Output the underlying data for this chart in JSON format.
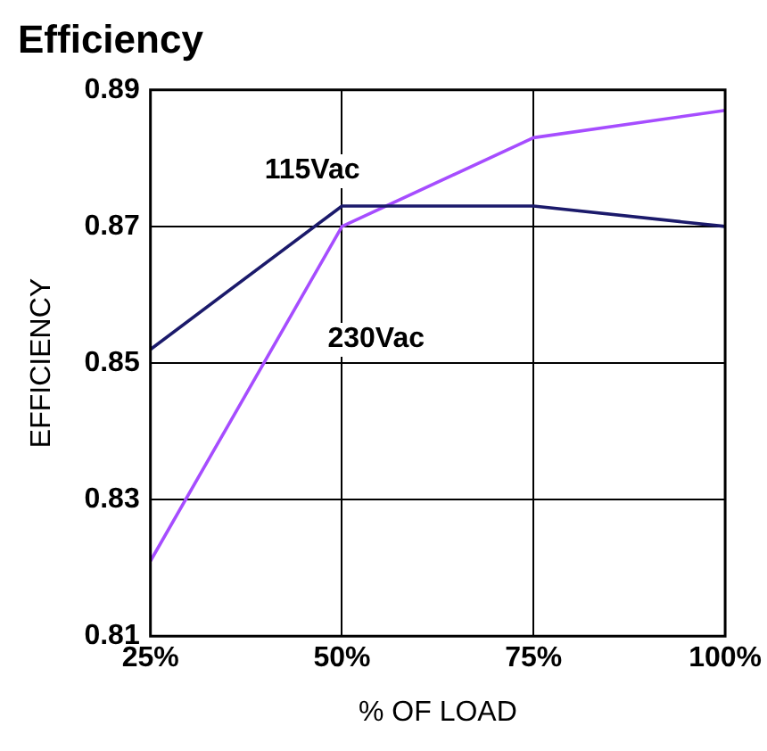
{
  "chart_data": {
    "type": "line",
    "title": "Efficiency",
    "xlabel": "% OF LOAD",
    "ylabel": "EFFICIENCY",
    "x": [
      25,
      50,
      75,
      100
    ],
    "series": [
      {
        "name": "115Vac",
        "color": "#1b1a6b",
        "values": [
          0.852,
          0.873,
          0.873,
          0.87
        ]
      },
      {
        "name": "230Vac",
        "color": "#a64dff",
        "values": [
          0.821,
          0.87,
          0.883,
          0.887
        ]
      }
    ],
    "xlim": [
      25,
      100
    ],
    "xticks": [
      {
        "value": 25,
        "label": "25%"
      },
      {
        "value": 50,
        "label": "50%"
      },
      {
        "value": 75,
        "label": "75%"
      },
      {
        "value": 100,
        "label": "100%"
      }
    ],
    "ylim": [
      0.81,
      0.89
    ],
    "yticks": [
      0.81,
      0.83,
      0.85,
      0.87,
      0.89
    ],
    "grid": true,
    "legend": false,
    "marker": "none",
    "line_style": "solid"
  }
}
